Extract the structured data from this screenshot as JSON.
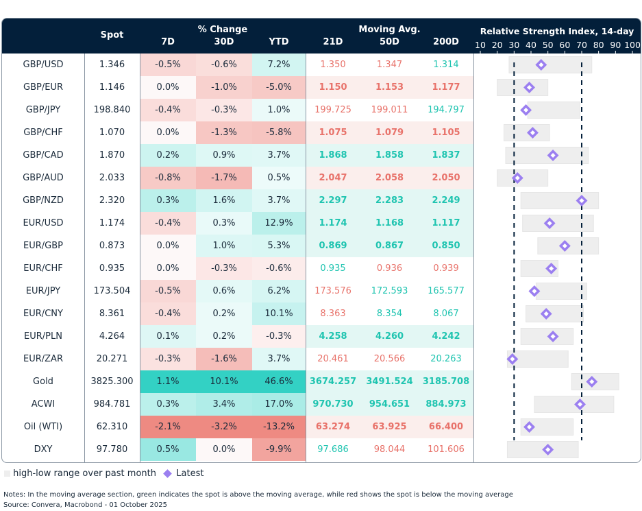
{
  "chart_data": {
    "type": "table",
    "headers": {
      "spot": "Spot",
      "pct_group": "% Change",
      "pct": [
        "7D",
        "30D",
        "YTD"
      ],
      "ma_group": "Moving Avg.",
      "ma": [
        "21D",
        "50D",
        "200D"
      ],
      "rsi_title": "Relative Strength Index, 14-day"
    },
    "rsi_axis": {
      "ticks": [
        10,
        20,
        30,
        40,
        50,
        60,
        70,
        80,
        90,
        100
      ],
      "range": [
        10,
        100
      ],
      "reference_lines": [
        30,
        70
      ]
    },
    "colors": {
      "header": "#031f3a",
      "positive": "#33d1c4",
      "negative": "#ee8a82",
      "ma_up": "#1fc4b0",
      "ma_down": "#e8726a",
      "range": "#eeeeee",
      "latest": "#9b7ff0"
    },
    "rows": [
      {
        "name": "GBP/USD",
        "spot": "1.346",
        "pct": [
          -0.5,
          -0.6,
          7.2
        ],
        "ma": [
          "1.350",
          "1.347",
          "1.314"
        ],
        "rsi": 46,
        "rsi_range": [
          27,
          76
        ]
      },
      {
        "name": "GBP/EUR",
        "spot": "1.146",
        "pct": [
          0.0,
          -1.0,
          -5.0
        ],
        "ma": [
          "1.150",
          "1.153",
          "1.177"
        ],
        "rsi": 39,
        "rsi_range": [
          20,
          50
        ]
      },
      {
        "name": "GBP/JPY",
        "spot": "198.840",
        "pct": [
          -0.4,
          -0.3,
          1.0
        ],
        "ma": [
          "199.725",
          "199.011",
          "194.797"
        ],
        "rsi": 37,
        "rsi_range": [
          38,
          69
        ]
      },
      {
        "name": "GBP/CHF",
        "spot": "1.070",
        "pct": [
          0.0,
          -1.3,
          -5.8
        ],
        "ma": [
          "1.075",
          "1.079",
          "1.105"
        ],
        "rsi": 41,
        "rsi_range": [
          24,
          51
        ]
      },
      {
        "name": "GBP/CAD",
        "spot": "1.870",
        "pct": [
          0.2,
          0.9,
          3.7
        ],
        "ma": [
          "1.868",
          "1.858",
          "1.837"
        ],
        "rsi": 53,
        "rsi_range": [
          25,
          74
        ]
      },
      {
        "name": "GBP/AUD",
        "spot": "2.033",
        "pct": [
          -0.8,
          -1.7,
          0.5
        ],
        "ma": [
          "2.047",
          "2.058",
          "2.050"
        ],
        "rsi": 32,
        "rsi_range": [
          20,
          50
        ]
      },
      {
        "name": "GBP/NZD",
        "spot": "2.320",
        "pct": [
          0.3,
          1.6,
          3.7
        ],
        "ma": [
          "2.297",
          "2.283",
          "2.249"
        ],
        "rsi": 70,
        "rsi_range": [
          34,
          80
        ]
      },
      {
        "name": "EUR/USD",
        "spot": "1.174",
        "pct": [
          -0.4,
          0.3,
          12.9
        ],
        "ma": [
          "1.174",
          "1.168",
          "1.117"
        ],
        "rsi": 51,
        "rsi_range": [
          35,
          77
        ]
      },
      {
        "name": "EUR/GBP",
        "spot": "0.873",
        "pct": [
          0.0,
          1.0,
          5.3
        ],
        "ma": [
          "0.869",
          "0.867",
          "0.850"
        ],
        "rsi": 60,
        "rsi_range": [
          44,
          80
        ]
      },
      {
        "name": "EUR/CHF",
        "spot": "0.935",
        "pct": [
          0.0,
          -0.3,
          -0.6
        ],
        "ma": [
          "0.935",
          "0.936",
          "0.939"
        ],
        "rsi": 52,
        "rsi_range": [
          34,
          56
        ]
      },
      {
        "name": "EUR/JPY",
        "spot": "173.504",
        "pct": [
          -0.5,
          0.6,
          6.2
        ],
        "ma": [
          "173.576",
          "172.593",
          "165.577"
        ],
        "rsi": 42,
        "rsi_range": [
          43,
          73
        ]
      },
      {
        "name": "EUR/CNY",
        "spot": "8.361",
        "pct": [
          -0.4,
          0.2,
          10.1
        ],
        "ma": [
          "8.363",
          "8.354",
          "8.067"
        ],
        "rsi": 49,
        "rsi_range": [
          37,
          71
        ]
      },
      {
        "name": "EUR/PLN",
        "spot": "4.264",
        "pct": [
          0.1,
          0.2,
          -0.3
        ],
        "ma": [
          "4.258",
          "4.260",
          "4.242"
        ],
        "rsi": 53,
        "rsi_range": [
          34,
          65
        ]
      },
      {
        "name": "EUR/ZAR",
        "spot": "20.271",
        "pct": [
          -0.3,
          -1.6,
          3.7
        ],
        "ma": [
          "20.461",
          "20.566",
          "20.263"
        ],
        "rsi": 29,
        "rsi_range": [
          26,
          62
        ]
      },
      {
        "name": "Gold",
        "spot": "3825.300",
        "pct": [
          1.1,
          10.1,
          46.6
        ],
        "ma": [
          "3674.257",
          "3491.524",
          "3185.708"
        ],
        "rsi": 76,
        "rsi_range": [
          64,
          92
        ]
      },
      {
        "name": "ACWI",
        "spot": "984.781",
        "pct": [
          0.3,
          3.4,
          17.0
        ],
        "ma": [
          "970.730",
          "954.651",
          "884.973"
        ],
        "rsi": 69,
        "rsi_range": [
          42,
          89
        ]
      },
      {
        "name": "Oil (WTI)",
        "spot": "62.310",
        "pct": [
          -2.1,
          -3.2,
          -13.2
        ],
        "ma": [
          "63.274",
          "63.925",
          "66.400"
        ],
        "rsi": 39,
        "rsi_range": [
          34,
          65
        ]
      },
      {
        "name": "DXY",
        "spot": "97.780",
        "pct": [
          0.5,
          0.0,
          -9.9
        ],
        "ma": [
          "97.686",
          "98.044",
          "101.606"
        ],
        "rsi": 50,
        "rsi_range": [
          26,
          68
        ]
      }
    ]
  },
  "legend": {
    "range": "high-low range over past month",
    "latest": "Latest"
  },
  "notes": {
    "note": "Notes: In the moving average section, green indicates the spot is above the moving average, while red shows the spot is below the moving average",
    "source": "Source: Convera, Macrobond - 01 October 2025"
  }
}
